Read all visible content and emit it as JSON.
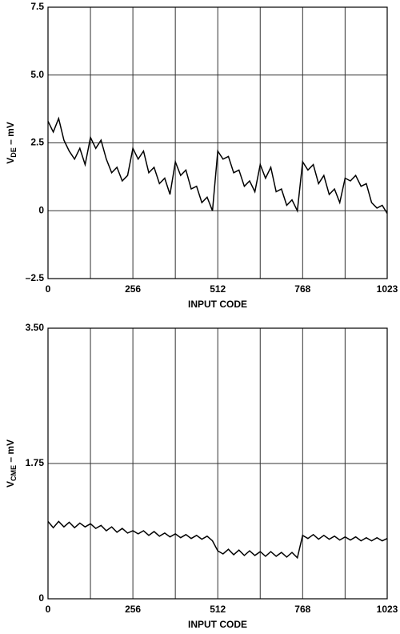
{
  "chart_data": [
    {
      "type": "line",
      "xlabel": "INPUT CODE",
      "ylabel": {
        "main": "V",
        "sub": "DE",
        "rest": " – mV"
      },
      "xlim": [
        0,
        1023
      ],
      "xticks": [
        0,
        256,
        512,
        768,
        1023
      ],
      "xgrid": [
        128,
        384,
        640,
        896
      ],
      "ylim": [
        -2.5,
        7.5
      ],
      "yticks": [
        {
          "value": -2.5,
          "label": "–2.5"
        },
        0,
        2.5,
        {
          "value": 5,
          "label": "5.0"
        },
        7.5
      ],
      "grid": true,
      "series": [
        {
          "color": "#000000",
          "x": [
            0,
            16,
            32,
            48,
            64,
            80,
            96,
            112,
            128,
            144,
            160,
            176,
            192,
            208,
            224,
            240,
            256,
            272,
            288,
            304,
            320,
            336,
            352,
            368,
            384,
            400,
            416,
            432,
            448,
            464,
            480,
            496,
            512,
            528,
            544,
            560,
            576,
            592,
            608,
            624,
            640,
            656,
            672,
            688,
            704,
            720,
            736,
            752,
            768,
            784,
            800,
            816,
            832,
            848,
            864,
            880,
            896,
            912,
            928,
            944,
            960,
            976,
            992,
            1008,
            1023
          ],
          "values": [
            3.3,
            2.9,
            3.4,
            2.6,
            2.2,
            1.9,
            2.3,
            1.7,
            2.7,
            2.3,
            2.6,
            1.9,
            1.4,
            1.6,
            1.1,
            1.3,
            2.3,
            1.9,
            2.2,
            1.4,
            1.6,
            1.0,
            1.2,
            0.6,
            1.8,
            1.3,
            1.5,
            0.8,
            0.9,
            0.3,
            0.5,
            0.0,
            2.2,
            1.9,
            2.0,
            1.4,
            1.5,
            0.9,
            1.1,
            0.7,
            1.7,
            1.2,
            1.6,
            0.7,
            0.8,
            0.2,
            0.4,
            0.0,
            1.8,
            1.5,
            1.7,
            1.0,
            1.3,
            0.6,
            0.8,
            0.3,
            1.2,
            1.1,
            1.3,
            0.9,
            1.0,
            0.3,
            0.1,
            0.2,
            -0.1
          ]
        }
      ]
    },
    {
      "type": "line",
      "xlabel": "INPUT CODE",
      "ylabel": {
        "main": "V",
        "sub": "CME",
        "rest": " – mV"
      },
      "xlim": [
        0,
        1023
      ],
      "xticks": [
        0,
        256,
        512,
        768,
        1023
      ],
      "xgrid": [
        128,
        384,
        640,
        896
      ],
      "ylim": [
        0,
        3.5
      ],
      "yticks": [
        0,
        1.75,
        {
          "value": 3.5,
          "label": "3.50"
        }
      ],
      "grid": true,
      "series": [
        {
          "color": "#000000",
          "x": [
            0,
            16,
            32,
            48,
            64,
            80,
            96,
            112,
            128,
            144,
            160,
            176,
            192,
            208,
            224,
            240,
            256,
            272,
            288,
            304,
            320,
            336,
            352,
            368,
            384,
            400,
            416,
            432,
            448,
            464,
            480,
            496,
            512,
            528,
            544,
            560,
            576,
            592,
            608,
            624,
            640,
            656,
            672,
            688,
            704,
            720,
            736,
            752,
            768,
            784,
            800,
            816,
            832,
            848,
            864,
            880,
            896,
            912,
            928,
            944,
            960,
            976,
            992,
            1008,
            1023
          ],
          "values": [
            1.0,
            0.92,
            1.0,
            0.93,
            0.99,
            0.92,
            0.98,
            0.93,
            0.97,
            0.91,
            0.95,
            0.88,
            0.93,
            0.86,
            0.91,
            0.85,
            0.88,
            0.84,
            0.88,
            0.82,
            0.87,
            0.81,
            0.85,
            0.8,
            0.84,
            0.79,
            0.83,
            0.78,
            0.82,
            0.77,
            0.81,
            0.75,
            0.62,
            0.58,
            0.64,
            0.57,
            0.63,
            0.56,
            0.62,
            0.56,
            0.61,
            0.55,
            0.61,
            0.55,
            0.6,
            0.54,
            0.6,
            0.53,
            0.82,
            0.78,
            0.83,
            0.77,
            0.82,
            0.77,
            0.81,
            0.76,
            0.8,
            0.76,
            0.8,
            0.75,
            0.79,
            0.75,
            0.79,
            0.75,
            0.78
          ]
        }
      ]
    }
  ]
}
